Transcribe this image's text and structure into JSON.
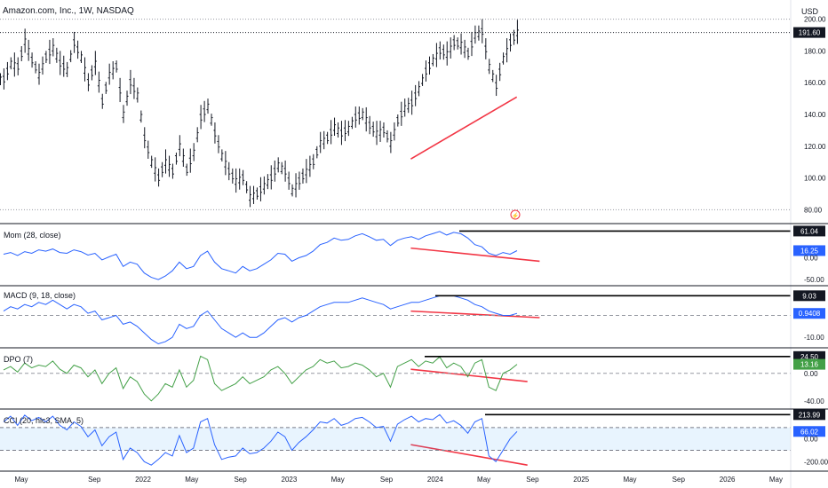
{
  "symbol": {
    "title": "Amazon.com, Inc., 1W, NASDAQ",
    "currency": "USD"
  },
  "colors": {
    "bars": "#131722",
    "mom": "#2962ff",
    "macd": "#2962ff",
    "dpo": "#43a047",
    "cci": "#2962ff",
    "divergence": "#f23645",
    "resistance": "#000000",
    "cci_band": "#2196f3"
  },
  "x_axis": {
    "labels": [
      "May",
      "Sep",
      "2022",
      "May",
      "Sep",
      "2023",
      "May",
      "Sep",
      "2024",
      "May",
      "Sep",
      "2025",
      "May",
      "Sep",
      "2026",
      "May"
    ]
  },
  "panes": {
    "mom": {
      "title": "Mom (28, close)",
      "ticks": [
        "0.00",
        "-50.00"
      ],
      "level_label": "61.04",
      "value_label": "16.25"
    },
    "macd": {
      "title": "MACD (9, 18, close)",
      "ticks": [
        "-10.00"
      ],
      "level_label": "9.03",
      "value_label": "0.9408"
    },
    "dpo": {
      "title": "DPO (7)",
      "ticks": [
        "0.00",
        "-40.00"
      ],
      "level_label": "24.50",
      "value_label": "13.16"
    },
    "cci": {
      "title": "CCI (20, hlc3, SMA, 5)",
      "ticks": [
        "0.00",
        "-200.00"
      ],
      "level_label": "213.99",
      "value_label": "66.02"
    }
  },
  "chart_data": {
    "type": "ohlc",
    "title": "Amazon.com, Inc., 1W, NASDAQ",
    "price_axis": {
      "ticks": [
        200,
        180,
        160,
        140,
        120,
        100,
        80
      ],
      "ylim": [
        78,
        202
      ],
      "last_price_label": "191.60",
      "last_price": 191.6
    },
    "approx_weekly_closes": [
      162,
      172,
      170,
      186,
      174,
      165,
      176,
      182,
      172,
      168,
      185,
      176,
      160,
      172,
      148,
      165,
      170,
      140,
      160,
      152,
      125,
      110,
      100,
      110,
      104,
      120,
      105,
      116,
      138,
      145,
      128,
      114,
      104,
      98,
      100,
      88,
      90,
      95,
      100,
      108,
      104,
      92,
      98,
      104,
      110,
      122,
      125,
      132,
      128,
      131,
      138,
      140,
      133,
      128,
      130,
      122,
      136,
      144,
      147,
      156,
      167,
      174,
      180,
      178,
      185,
      184,
      178,
      190,
      192,
      170,
      158,
      175,
      185,
      191.6
    ],
    "divergence_lines": [
      {
        "pane": "price",
        "from": [
          "Nov 2023",
          112
        ],
        "to": [
          "Aug 2024",
          151
        ]
      },
      {
        "pane": "mom",
        "from": [
          "Nov 2023",
          22
        ],
        "to": [
          "Sep 2024",
          -8
        ]
      },
      {
        "pane": "macd",
        "from": [
          "Nov 2023",
          2
        ],
        "to": [
          "Sep 2024",
          -1
        ]
      },
      {
        "pane": "dpo",
        "from": [
          "Nov 2023",
          6
        ],
        "to": [
          "Aug 2024",
          -12
        ]
      },
      {
        "pane": "cci",
        "from": [
          "Nov 2023",
          -50
        ],
        "to": [
          "Aug 2024",
          -230
        ]
      }
    ],
    "resistance_levels": {
      "mom": 61.04,
      "macd": 9.03,
      "dpo": 24.5,
      "cci": 213.99
    },
    "indicators": {
      "mom": {
        "name": "Mom (28, close)",
        "last": 16.25,
        "ylim": [
          -60,
          70
        ],
        "values": [
          8,
          12,
          5,
          14,
          10,
          18,
          15,
          20,
          12,
          10,
          18,
          14,
          6,
          10,
          -5,
          2,
          8,
          -20,
          -10,
          -15,
          -35,
          -45,
          -50,
          -42,
          -30,
          -10,
          -25,
          -20,
          5,
          15,
          -10,
          -25,
          -30,
          -35,
          -20,
          -30,
          -25,
          -15,
          -5,
          10,
          8,
          -8,
          0,
          5,
          15,
          30,
          35,
          45,
          40,
          42,
          50,
          55,
          48,
          40,
          42,
          28,
          40,
          45,
          48,
          42,
          50,
          55,
          60,
          52,
          58,
          55,
          45,
          30,
          25,
          10,
          5,
          12,
          8,
          16.25
        ]
      },
      "macd": {
        "name": "MACD (9, 18, close)",
        "last": 0.9408,
        "ylim": [
          -14,
          12
        ],
        "values": [
          2,
          4,
          3,
          5,
          4,
          6,
          5,
          7,
          5,
          3,
          5,
          4,
          1,
          2,
          -2,
          -1,
          0,
          -4,
          -3,
          -5,
          -8,
          -11,
          -13,
          -12,
          -10,
          -4,
          -6,
          -5,
          0,
          2,
          -2,
          -6,
          -8,
          -10,
          -8,
          -10,
          -10,
          -8,
          -5,
          -2,
          -1,
          -3,
          -1,
          0,
          2,
          4,
          5,
          6,
          6,
          6,
          7,
          8,
          7,
          6,
          5,
          3,
          4,
          5,
          6,
          6,
          7,
          8,
          9,
          9,
          9,
          8,
          7,
          5,
          4,
          2,
          1,
          0,
          0,
          0.94
        ]
      },
      "dpo": {
        "name": "DPO (7)",
        "last": 13.16,
        "ylim": [
          -48,
          32
        ],
        "values": [
          5,
          10,
          2,
          15,
          8,
          12,
          10,
          18,
          6,
          0,
          12,
          8,
          -5,
          5,
          -15,
          0,
          8,
          -22,
          -5,
          -12,
          -30,
          -40,
          -30,
          -15,
          -20,
          5,
          -20,
          -10,
          25,
          20,
          -15,
          -25,
          -20,
          -15,
          -5,
          -15,
          -10,
          -5,
          5,
          10,
          0,
          -15,
          -5,
          5,
          10,
          20,
          15,
          18,
          8,
          10,
          15,
          12,
          5,
          -5,
          0,
          -20,
          10,
          15,
          20,
          10,
          18,
          15,
          24,
          8,
          15,
          10,
          -5,
          15,
          20,
          -20,
          -25,
          0,
          5,
          13.16
        ]
      },
      "cci": {
        "name": "CCI (20, hlc3, SMA, 5)",
        "last": 66.02,
        "ylim": [
          -260,
          240
        ],
        "bands": [
          100,
          -100
        ],
        "values": [
          150,
          200,
          120,
          210,
          160,
          190,
          150,
          200,
          120,
          80,
          150,
          110,
          20,
          80,
          -60,
          20,
          60,
          -180,
          -80,
          -120,
          -200,
          -230,
          -180,
          -120,
          -150,
          30,
          -120,
          -80,
          150,
          180,
          -50,
          -180,
          -160,
          -150,
          -80,
          -130,
          -120,
          -80,
          -20,
          60,
          20,
          -100,
          -30,
          20,
          80,
          150,
          140,
          180,
          120,
          140,
          180,
          190,
          150,
          100,
          110,
          -20,
          130,
          170,
          200,
          150,
          180,
          170,
          213.99,
          140,
          160,
          120,
          50,
          150,
          180,
          -150,
          -200,
          -100,
          0,
          66.02
        ]
      }
    }
  }
}
